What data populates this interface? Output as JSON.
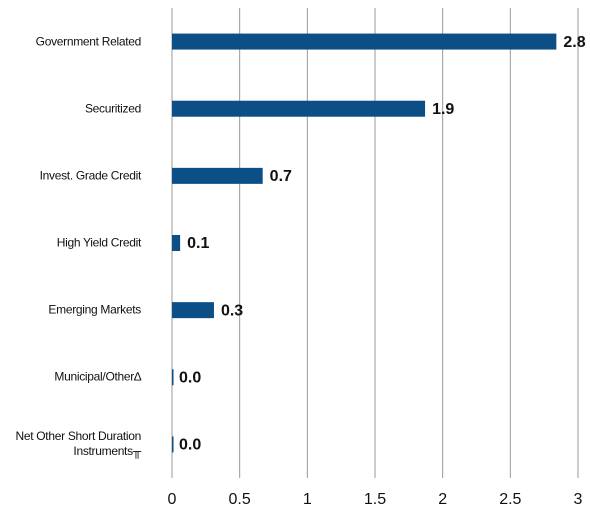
{
  "chart_data": {
    "type": "hbar",
    "categories": [
      "Government Related",
      "Securitized",
      "Invest. Grade Credit",
      "High Yield Credit",
      "Emerging Markets",
      "Municipal/Other∆",
      "Net Other Short Duration Instruments╥"
    ],
    "values": [
      2.84,
      1.87,
      0.67,
      0.06,
      0.31,
      0,
      0
    ],
    "value_labels": [
      "2.8",
      "1.9",
      "0.7",
      "0.1",
      "0.3",
      "0.0",
      "0.0"
    ],
    "color": "#0b4f86",
    "xlim": [
      0,
      3
    ],
    "xticks": [
      0,
      0.5,
      1,
      1.5,
      2,
      2.5,
      3
    ],
    "grid": true
  }
}
